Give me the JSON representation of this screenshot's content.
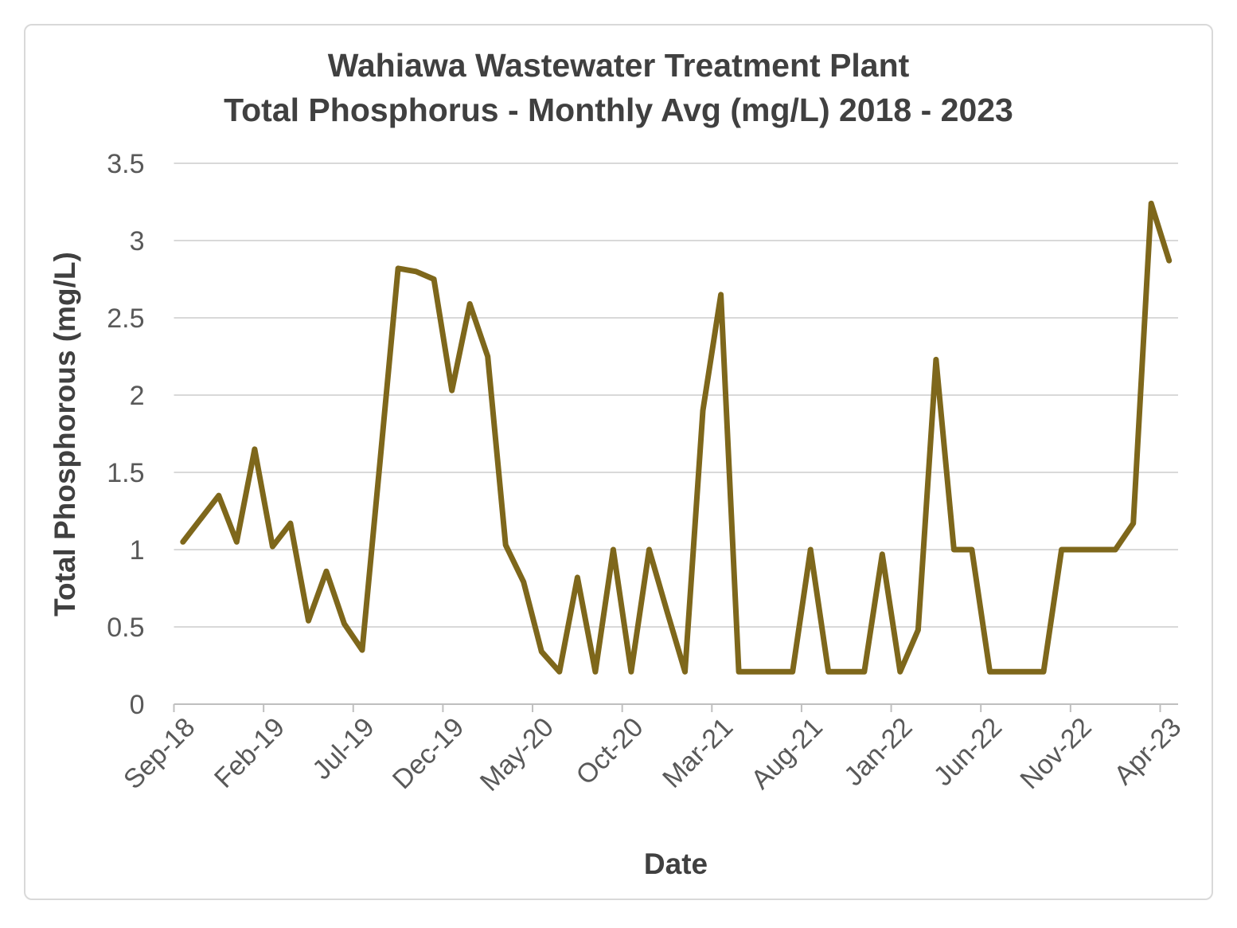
{
  "chart_data": {
    "type": "line",
    "title": "Wahiawa Wastewater Treatment Plant Total Phosphorus - Monthly Avg (mg/L) 2018 - 2023",
    "title_line1": "Wahiawa Wastewater Treatment Plant",
    "title_line2": "Total Phosphorus - Monthly Avg (mg/L) 2018 - 2023",
    "xlabel": "Date",
    "ylabel": "Total Phosphorous (mg/L)",
    "ylim": [
      0,
      3.5
    ],
    "y_ticks": [
      3.5,
      3,
      2.5,
      2,
      1.5,
      1,
      0.5,
      0
    ],
    "y_tick_labels": [
      "3.5",
      "3",
      "2.5",
      "2",
      "1.5",
      "1",
      "0.5",
      "0"
    ],
    "x_tick_labels": [
      "Sep-18",
      "Feb-19",
      "Jul-19",
      "Dec-19",
      "May-20",
      "Oct-20",
      "Mar-21",
      "Aug-21",
      "Jan-22",
      "Jun-22",
      "Nov-22",
      "Apr-23"
    ],
    "x_tick_every": 5,
    "grid": true,
    "legend": "none",
    "x": [
      "Sep-18",
      "Oct-18",
      "Nov-18",
      "Dec-18",
      "Jan-19",
      "Feb-19",
      "Mar-19",
      "Apr-19",
      "May-19",
      "Jun-19",
      "Jul-19",
      "Aug-19",
      "Sep-19",
      "Oct-19",
      "Nov-19",
      "Dec-19",
      "Jan-20",
      "Feb-20",
      "Mar-20",
      "Apr-20",
      "May-20",
      "Jun-20",
      "Jul-20",
      "Aug-20",
      "Sep-20",
      "Oct-20",
      "Nov-20",
      "Dec-20",
      "Jan-21",
      "Feb-21",
      "Mar-21",
      "Apr-21",
      "May-21",
      "Jun-21",
      "Jul-21",
      "Aug-21",
      "Sep-21",
      "Oct-21",
      "Nov-21",
      "Dec-21",
      "Jan-22",
      "Feb-22",
      "Mar-22",
      "Apr-22",
      "May-22",
      "Jun-22",
      "Jul-22",
      "Aug-22",
      "Sep-22",
      "Oct-22",
      "Nov-22",
      "Dec-22",
      "Jan-23",
      "Feb-23",
      "Mar-23",
      "Apr-23"
    ],
    "values": [
      1.05,
      1.2,
      1.35,
      1.05,
      1.65,
      1.02,
      1.17,
      0.54,
      0.86,
      0.52,
      0.35,
      1.58,
      2.82,
      2.8,
      2.75,
      2.03,
      2.59,
      2.25,
      1.03,
      0.79,
      0.34,
      0.21,
      0.82,
      0.21,
      1.0,
      0.21,
      1.0,
      0.6,
      0.21,
      1.9,
      2.65,
      0.21,
      0.21,
      0.21,
      0.21,
      1.0,
      0.21,
      0.21,
      0.21,
      0.97,
      0.21,
      0.48,
      2.23,
      1.0,
      1.0,
      0.21,
      0.21,
      0.21,
      0.21,
      1.0,
      1.0,
      1.0,
      1.0,
      1.17,
      3.24,
      2.87
    ],
    "colors": {
      "series": "#7E671B",
      "grid": "#D9D9D9",
      "axis": "#BFBFBF",
      "tick_text": "#595959",
      "title_text": "#404040",
      "border": "#D9D9D9",
      "background": "#FFFFFF"
    }
  }
}
